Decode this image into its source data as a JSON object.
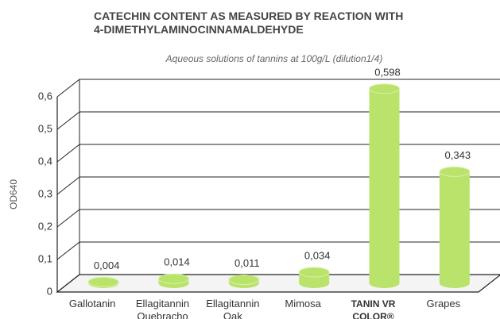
{
  "chart_data": {
    "type": "cylinder-bar",
    "title": "CATECHIN CONTENT AS MEASURED BY REACTION WITH 4-DIMETHYLAMINOCINNAMALDEHYDE",
    "subtitle": "Aqueous solutions of tannins at 100g/L (dilution1/4)",
    "y_label": "OD640",
    "categories": [
      "Gallotanin",
      "Ellagitannin Quebracho",
      "Ellagitannin Oak",
      "Mimosa",
      "TANIN VR COLOR®",
      "Grapes"
    ],
    "values": [
      0.004,
      0.014,
      0.011,
      0.034,
      0.598,
      0.343
    ],
    "value_labels": [
      "0,004",
      "0,014",
      "0,011",
      "0,034",
      "0,598",
      "0,343"
    ],
    "color": "#b9e36b",
    "ylim": [
      0,
      0.6
    ],
    "yticks": [
      0,
      {
        "value": 0.1,
        "label": "0,1"
      },
      {
        "value": 0.2,
        "label": "0,2"
      },
      {
        "value": 0.3,
        "label": "0,3"
      },
      {
        "value": 0.4,
        "label": "0,4"
      },
      {
        "value": 0.5,
        "label": "0,5"
      },
      {
        "value": 0.6,
        "label": "0,6"
      }
    ],
    "grid": true
  }
}
